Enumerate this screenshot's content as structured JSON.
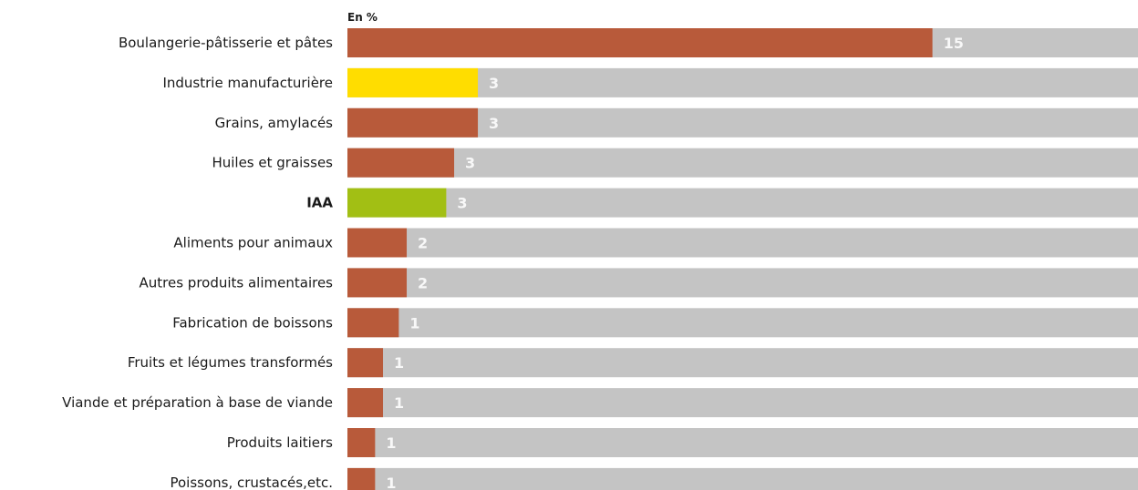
{
  "chart_data": {
    "type": "bar",
    "orientation": "horizontal",
    "unit_label": "En %",
    "categories": [
      "Boulangerie-pâtisserie et pâtes",
      "Industrie manufacturière",
      "Grains, amylacés",
      "Huiles et graisses",
      "IAA",
      "Aliments pour animaux",
      "Autres produits alimentaires",
      "Fabrication de boissons",
      "Fruits et légumes transformés",
      "Viande et préparation à base de viande",
      "Produits laitiers",
      "Poissons, crustacés,etc."
    ],
    "values": [
      14.8,
      3.3,
      3.3,
      2.7,
      2.5,
      1.5,
      1.5,
      1.3,
      0.9,
      0.9,
      0.7,
      0.7
    ],
    "value_labels": [
      "15",
      "3",
      "3",
      "3",
      "3",
      "2",
      "2",
      "1",
      "1",
      "1",
      "1",
      "1"
    ],
    "bar_colors": [
      "#b85a3a",
      "#ffdd00",
      "#b85a3a",
      "#b85a3a",
      "#a2bf14",
      "#b85a3a",
      "#b85a3a",
      "#b85a3a",
      "#b85a3a",
      "#b85a3a",
      "#b85a3a",
      "#b85a3a"
    ],
    "bold_categories": [
      "IAA"
    ],
    "background_bar_color": "#c4c4c4",
    "xlim": [
      0,
      20
    ]
  }
}
